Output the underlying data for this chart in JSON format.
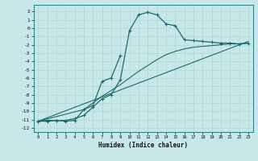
{
  "xlabel": "Humidex (Indice chaleur)",
  "bg_color": "#c8e8e8",
  "grid_color": "#b0d8d0",
  "line_color": "#1a6b6b",
  "xlim": [
    -0.5,
    23.5
  ],
  "ylim": [
    -12.5,
    2.8
  ],
  "yticks": [
    2,
    1,
    0,
    -1,
    -2,
    -3,
    -4,
    -5,
    -6,
    -7,
    -8,
    -9,
    -10,
    -11,
    -12
  ],
  "xticks": [
    0,
    1,
    2,
    3,
    4,
    5,
    6,
    7,
    8,
    9,
    10,
    11,
    12,
    13,
    14,
    15,
    16,
    17,
    18,
    19,
    20,
    21,
    22,
    23
  ],
  "line1_x": [
    0,
    1,
    2,
    3,
    4,
    5,
    6,
    7,
    8,
    9,
    10,
    11,
    12,
    13,
    14,
    15,
    16,
    17,
    18,
    19,
    20,
    21,
    22,
    23
  ],
  "line1_y": [
    -11.2,
    -11.2,
    -11.1,
    -11.1,
    -10.9,
    -10.5,
    -9.5,
    -8.5,
    -8.0,
    -6.2,
    -0.3,
    1.6,
    1.9,
    1.6,
    0.5,
    0.3,
    -1.4,
    -1.5,
    -1.6,
    -1.7,
    -1.8,
    -1.8,
    -1.9,
    -1.8
  ],
  "line2_x": [
    0,
    1,
    2,
    3,
    4,
    5,
    6,
    7,
    8,
    9
  ],
  "line2_y": [
    -11.2,
    -11.1,
    -11.1,
    -11.2,
    -11.1,
    -9.8,
    -9.3,
    -6.4,
    -6.0,
    -3.3
  ],
  "line3_x": [
    0,
    5,
    6,
    7,
    8,
    9,
    10,
    11,
    12,
    13,
    14,
    15,
    16,
    17,
    18,
    19,
    20,
    21,
    22,
    23
  ],
  "line3_y": [
    -11.2,
    -9.8,
    -9.0,
    -8.2,
    -7.5,
    -6.8,
    -6.0,
    -5.2,
    -4.5,
    -3.8,
    -3.2,
    -2.8,
    -2.5,
    -2.3,
    -2.2,
    -2.1,
    -2.0,
    -1.9,
    -1.9,
    -1.8
  ],
  "line4_x": [
    0,
    23
  ],
  "line4_y": [
    -11.2,
    -1.6
  ]
}
